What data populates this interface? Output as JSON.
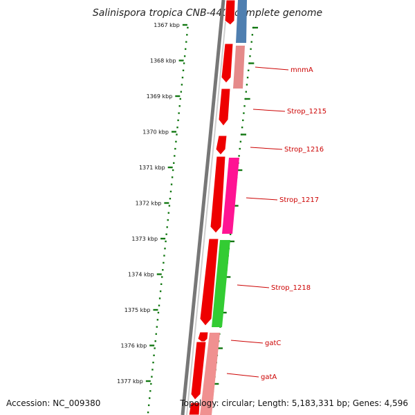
{
  "title": "Salinispora tropica CNB-440, complete genome",
  "footer": {
    "accession": "Accession: NC_009380",
    "topology": "Topology: circular; Length: 5,183,331 bp; Genes: 4,596"
  },
  "scale": {
    "labels": [
      "1367 kbp",
      "1368 kbp",
      "1369 kbp",
      "1370 kbp",
      "1371 kbp",
      "1372 kbp",
      "1373 kbp",
      "1374 kbp",
      "1375 kbp",
      "1376 kbp",
      "1377 kbp"
    ],
    "tick_color": "#117711"
  },
  "colors": {
    "forward_cds": "#ee0000",
    "pink_feature": "#ff1493",
    "blue_feature": "#4f7fb0",
    "light_red_feature": "#e58a8a",
    "green_feature": "#33cc33",
    "backbone": "#777777",
    "label": "#cc0000"
  },
  "gene_labels": [
    "mnmA",
    "Strop_1215",
    "Strop_1216",
    "Strop_1217",
    "Strop_1218",
    "gatC",
    "gatA"
  ]
}
